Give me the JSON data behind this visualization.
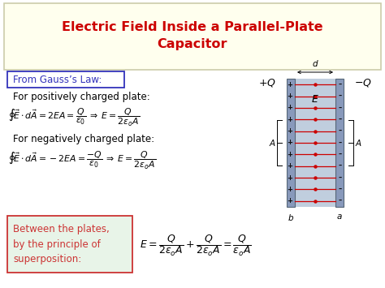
{
  "title": "Electric Field Inside a Parallel-Plate\nCapacitor",
  "title_color": "#cc0000",
  "title_bg": "#ffffee",
  "bg_color": "#ffffff",
  "gauss_label": "From Gauss’s Law:",
  "gauss_box_color": "#3333bb",
  "pos_plate_label": "For positively charged plate:",
  "neg_plate_label": "For negatively charged plate:",
  "superposition_label": "Between the plates,\nby the principle of\nsuperposition:",
  "superposition_box_color": "#cc3333",
  "superposition_bg": "#e8f4e8",
  "eq1": "$\\oint\\!\\vec{E}\\cdot d\\vec{A}=2EA=\\dfrac{Q}{\\varepsilon_0}\\;\\Rightarrow\\; E=\\dfrac{Q}{2\\varepsilon_o A}$",
  "eq2": "$\\oint\\!\\vec{E}\\cdot d\\vec{A}=-2EA=\\dfrac{-Q}{\\varepsilon_0}\\;\\Rightarrow\\; E=\\dfrac{Q}{2\\varepsilon_o A}$",
  "eq3": "$E=\\dfrac{Q}{2\\varepsilon_o A}+\\dfrac{Q}{2\\varepsilon_o A}=\\dfrac{Q}{\\varepsilon_o A}$",
  "figsize": [
    4.74,
    3.55
  ],
  "dpi": 100,
  "plate_color": "#aabbcc",
  "plate_dark": "#8899bb",
  "field_line_color": "#cc0000",
  "plus_color": "#222222",
  "minus_color": "#222222"
}
